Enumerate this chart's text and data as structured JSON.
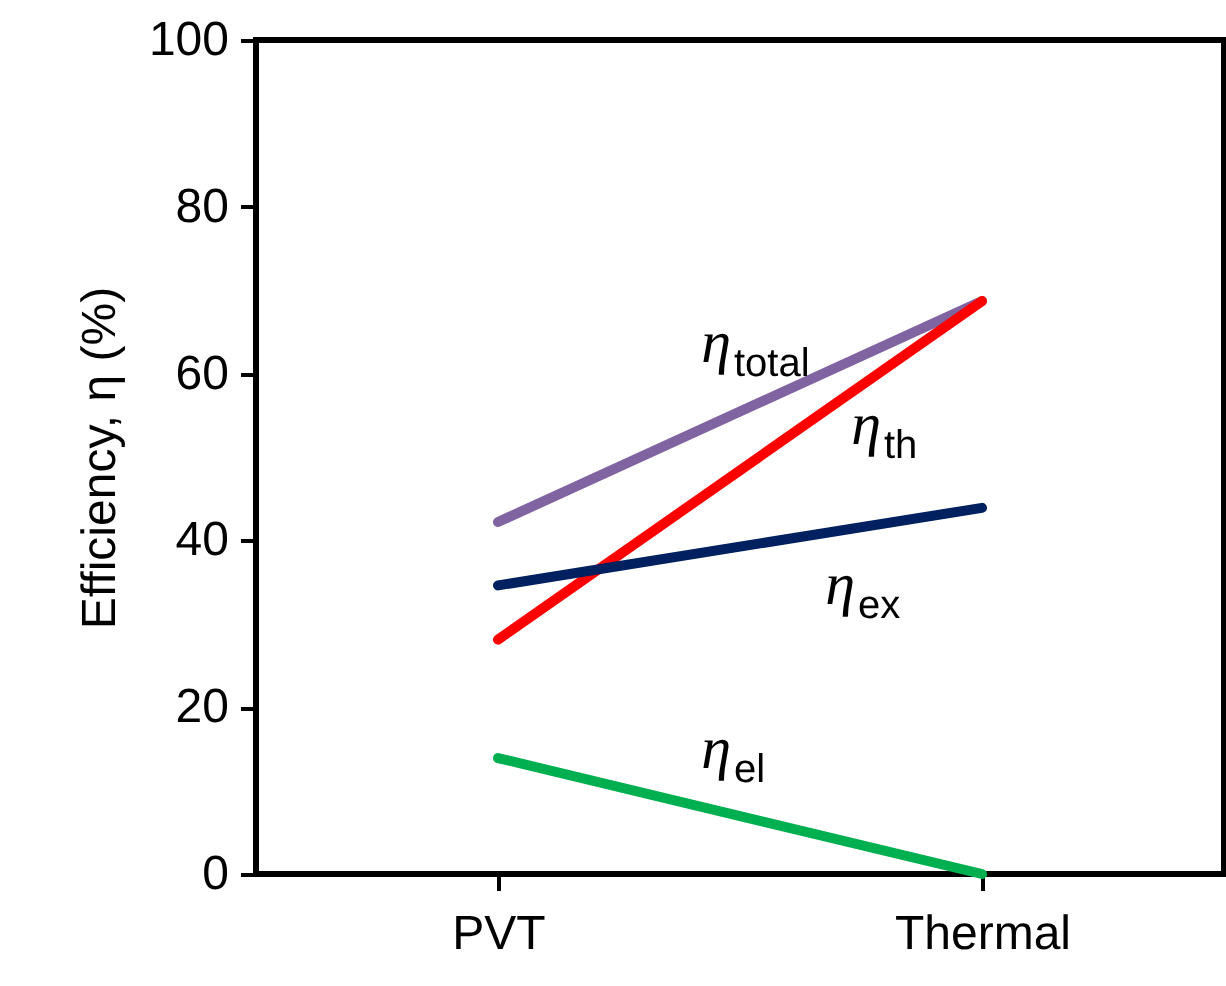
{
  "chart_data": {
    "type": "line",
    "ylabel": "Efficiency, η  (%)",
    "categories": [
      "PVT",
      "Thermal"
    ],
    "series": [
      {
        "name": "η$_{total}$",
        "color": "#8064a2",
        "values": [
          42.2,
          68.7
        ]
      },
      {
        "name": "η$_{th}$",
        "color": "#ff0000",
        "values": [
          28.1,
          68.7
        ]
      },
      {
        "name": "η$_{ex}$",
        "color": "#002060",
        "values": [
          34.6,
          43.9
        ]
      },
      {
        "name": "η$_{el}$",
        "color": "#00b050",
        "values": [
          13.9,
          0
        ]
      }
    ],
    "ylim": [
      0,
      100
    ],
    "yticks": [
      0,
      20,
      40,
      60,
      80,
      100
    ],
    "grid": false,
    "marker": "none",
    "line_style": "solid"
  }
}
